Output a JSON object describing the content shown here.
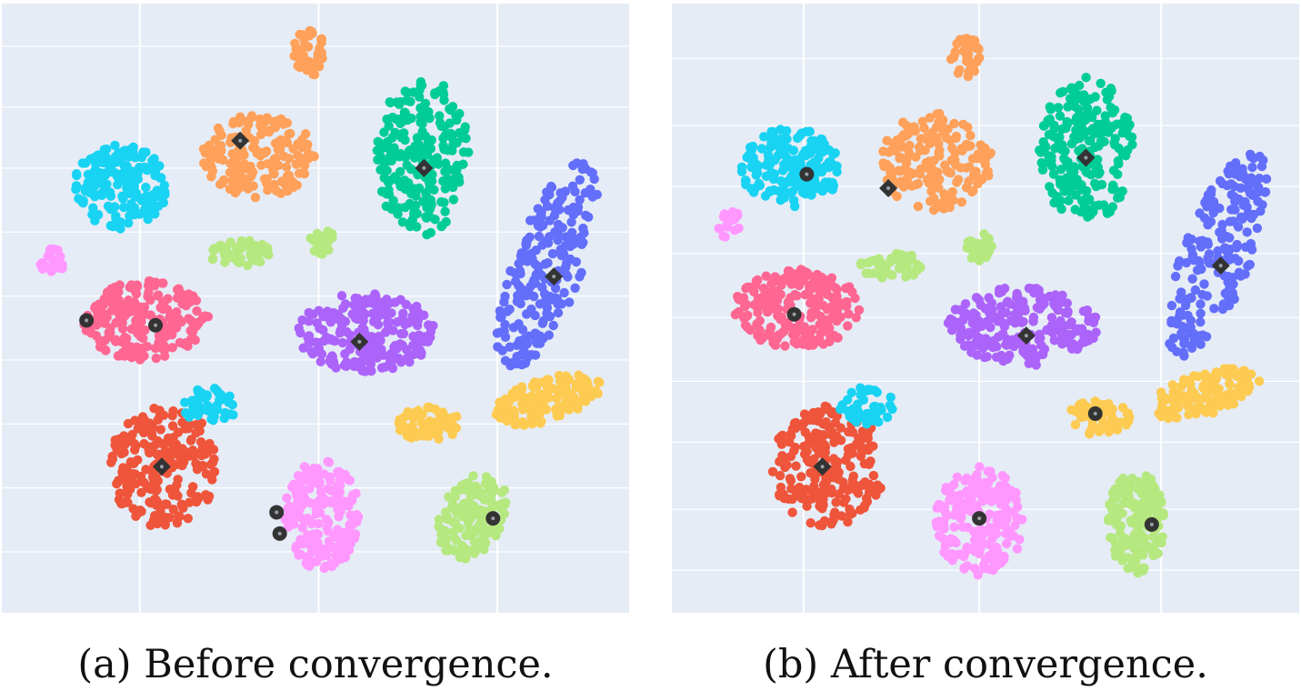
{
  "captions": {
    "a": "(a) Before convergence.",
    "b": "(b) After convergence."
  },
  "style": {
    "plot_bg": "#e5ecf6",
    "grid": "#ffffff",
    "marker_fill": "#333333",
    "marker_center": "#9aa0a8"
  },
  "chart_data": [
    {
      "type": "scatter",
      "title": "",
      "xlabel": "",
      "ylabel": "",
      "grid": true,
      "legend": "none",
      "tick_labels_shown": false,
      "xlim": [
        0,
        100
      ],
      "ylim": [
        0,
        100
      ],
      "xgrid": [
        22,
        50.5,
        79
      ],
      "ygrid": [
        7,
        17,
        27,
        37.5,
        48,
        58.5,
        69,
        79.5,
        90
      ],
      "clusters": [
        {
          "color": "#EF553B",
          "cx": 26,
          "cy": 76,
          "rx": 9,
          "ry": 10,
          "n": 220
        },
        {
          "color": "#FF6692",
          "cx": 23,
          "cy": 52,
          "rx": 10,
          "ry": 6.5,
          "n": 210
        },
        {
          "color": "#00CC96",
          "cx": 67,
          "cy": 25,
          "rx": 7.5,
          "ry": 13,
          "n": 220
        },
        {
          "color": "#636EFA",
          "cx": 87,
          "cy": 43,
          "rx": 5.5,
          "ry": 18,
          "n": 210,
          "tilt": 0.35
        },
        {
          "color": "#AB63FA",
          "cx": 58,
          "cy": 54,
          "rx": 11,
          "ry": 6.5,
          "n": 210
        },
        {
          "color": "#FF97FF",
          "cx": 51,
          "cy": 84,
          "rx": 6,
          "ry": 9,
          "n": 190
        },
        {
          "color": "#B6E880",
          "cx": 75,
          "cy": 84,
          "rx": 5,
          "ry": 7.5,
          "n": 160,
          "tilt": 0.4
        },
        {
          "color": "#19D3F3",
          "cx": 19,
          "cy": 30,
          "rx": 7.5,
          "ry": 7,
          "n": 170
        },
        {
          "color": "#19D3F3",
          "cx": 33,
          "cy": 66,
          "rx": 4.5,
          "ry": 3,
          "n": 45
        },
        {
          "color": "#FFA15A",
          "cx": 41,
          "cy": 25,
          "rx": 9,
          "ry": 7,
          "n": 170
        },
        {
          "color": "#FFA15A",
          "cx": 49,
          "cy": 8,
          "rx": 2.5,
          "ry": 4,
          "n": 40
        },
        {
          "color": "#FECB52",
          "cx": 87,
          "cy": 65,
          "rx": 9,
          "ry": 3.5,
          "n": 130,
          "tilt": -0.3
        },
        {
          "color": "#FECB52",
          "cx": 68,
          "cy": 69,
          "rx": 5,
          "ry": 2.8,
          "n": 60
        },
        {
          "color": "#B6E880",
          "cx": 38,
          "cy": 41,
          "rx": 5,
          "ry": 2.2,
          "n": 50
        },
        {
          "color": "#B6E880",
          "cx": 51,
          "cy": 39,
          "rx": 2,
          "ry": 2.5,
          "n": 25
        },
        {
          "color": "#FF97FF",
          "cx": 8,
          "cy": 42,
          "rx": 2.2,
          "ry": 2.2,
          "n": 20
        }
      ],
      "centroids": [
        {
          "shape": "diamond",
          "x": 38,
          "y": 22.5
        },
        {
          "shape": "diamond",
          "x": 67.3,
          "y": 27
        },
        {
          "shape": "diamond",
          "x": 88,
          "y": 44.8
        },
        {
          "shape": "diamond",
          "x": 57,
          "y": 55.5
        },
        {
          "shape": "diamond",
          "x": 25.5,
          "y": 76
        },
        {
          "shape": "circle",
          "x": 13.5,
          "y": 52
        },
        {
          "shape": "circle",
          "x": 24.5,
          "y": 52.8
        },
        {
          "shape": "circle",
          "x": 43.8,
          "y": 83.5
        },
        {
          "shape": "circle",
          "x": 44.3,
          "y": 87
        },
        {
          "shape": "circle",
          "x": 78.3,
          "y": 84.5
        }
      ]
    },
    {
      "type": "scatter",
      "title": "",
      "xlabel": "",
      "ylabel": "",
      "grid": true,
      "legend": "none",
      "tick_labels_shown": false,
      "xlim": [
        0,
        100
      ],
      "ylim": [
        0,
        100
      ],
      "xgrid": [
        21,
        49,
        78
      ],
      "ygrid": [
        9,
        20,
        30,
        41,
        51.5,
        62,
        72,
        83,
        93
      ],
      "clusters": [
        {
          "color": "#EF553B",
          "cx": 25,
          "cy": 76,
          "rx": 9,
          "ry": 10,
          "n": 220
        },
        {
          "color": "#FF6692",
          "cx": 20,
          "cy": 50,
          "rx": 10,
          "ry": 6.5,
          "n": 210
        },
        {
          "color": "#00CC96",
          "cx": 66,
          "cy": 24,
          "rx": 7.5,
          "ry": 12,
          "n": 220
        },
        {
          "color": "#636EFA",
          "cx": 87,
          "cy": 41,
          "rx": 5.5,
          "ry": 18,
          "n": 210,
          "tilt": 0.35
        },
        {
          "color": "#AB63FA",
          "cx": 56,
          "cy": 53,
          "rx": 12,
          "ry": 6.5,
          "n": 210
        },
        {
          "color": "#FF97FF",
          "cx": 49,
          "cy": 85,
          "rx": 7,
          "ry": 9,
          "n": 190
        },
        {
          "color": "#B6E880",
          "cx": 74,
          "cy": 85,
          "rx": 4.5,
          "ry": 8.5,
          "n": 160
        },
        {
          "color": "#19D3F3",
          "cx": 19,
          "cy": 27,
          "rx": 8,
          "ry": 6.5,
          "n": 170
        },
        {
          "color": "#19D3F3",
          "cx": 31,
          "cy": 66,
          "rx": 4.5,
          "ry": 3.2,
          "n": 45
        },
        {
          "color": "#FFA15A",
          "cx": 42,
          "cy": 26,
          "rx": 9,
          "ry": 8,
          "n": 170
        },
        {
          "color": "#FFA15A",
          "cx": 47,
          "cy": 9,
          "rx": 2.5,
          "ry": 3.5,
          "n": 40
        },
        {
          "color": "#FECB52",
          "cx": 85,
          "cy": 64,
          "rx": 9,
          "ry": 3.5,
          "n": 130,
          "tilt": -0.3
        },
        {
          "color": "#FECB52",
          "cx": 68,
          "cy": 68,
          "rx": 5,
          "ry": 2.8,
          "n": 60
        },
        {
          "color": "#B6E880",
          "cx": 35,
          "cy": 43,
          "rx": 5,
          "ry": 2.2,
          "n": 50
        },
        {
          "color": "#B6E880",
          "cx": 49,
          "cy": 40,
          "rx": 2,
          "ry": 2.5,
          "n": 25
        },
        {
          "color": "#FF97FF",
          "cx": 9,
          "cy": 36,
          "rx": 2.2,
          "ry": 2.5,
          "n": 20
        }
      ],
      "centroids": [
        {
          "shape": "diamond",
          "x": 34.5,
          "y": 30.3
        },
        {
          "shape": "diamond",
          "x": 66,
          "y": 25.3
        },
        {
          "shape": "diamond",
          "x": 87.5,
          "y": 43
        },
        {
          "shape": "diamond",
          "x": 56.5,
          "y": 54.5
        },
        {
          "shape": "diamond",
          "x": 24,
          "y": 76
        },
        {
          "shape": "circle",
          "x": 21.5,
          "y": 28
        },
        {
          "shape": "circle",
          "x": 19.5,
          "y": 51
        },
        {
          "shape": "circle",
          "x": 67.5,
          "y": 67.3
        },
        {
          "shape": "circle",
          "x": 49,
          "y": 84.5
        },
        {
          "shape": "circle",
          "x": 76.5,
          "y": 85.5
        }
      ]
    }
  ]
}
